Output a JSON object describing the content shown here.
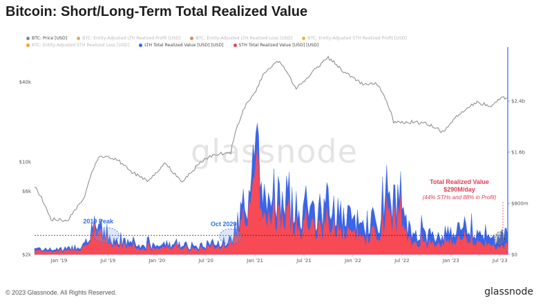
{
  "title": "Bitcoin: Short/Long-Term Total Realized Value",
  "legend": [
    {
      "label": "BTC: Price [USD]",
      "color": "#888888",
      "active": true
    },
    {
      "label": "BTC: Entity-Adjusted LTH Realized Profit [USD]",
      "color": "#f2a65a",
      "active": false
    },
    {
      "label": "BTC: Entity-Adjusted LTH Realized Loss [USD]",
      "color": "#e8844d",
      "active": false
    },
    {
      "label": "BTC: Entity-Adjusted STH Realized Profit [USD]",
      "color": "#f6b23a",
      "active": false
    },
    {
      "label": "BTC: Entity-Adjusted STH Realized Loss [USD]",
      "color": "#f0a030",
      "active": false
    },
    {
      "label": "LTH Total Realized Value [USD] [USD]",
      "color": "#3a64e8",
      "active": true
    },
    {
      "label": "STH Total Realized Value [USD] [USD]",
      "color": "#f0404e",
      "active": true
    }
  ],
  "watermark": "glassnode",
  "footer": {
    "copyright": "© 2023 Glassnode. All Rights Reserved.",
    "logo": "glassnode"
  },
  "colors": {
    "price": "#8a9196",
    "lth": "#3a64e8",
    "sth": "#f74a55",
    "right_axis": "#3a64e8"
  },
  "chart_data": {
    "type": "area",
    "title": "Bitcoin: Short/Long-Term Total Realized Value",
    "x_ticks": [
      "Jan '19",
      "Jul '19",
      "Jan '20",
      "Jul '20",
      "Jan '21",
      "Jul '21",
      "Jan '22",
      "Jul '22",
      "Jan '23",
      "Jul '23"
    ],
    "x": [
      "2018-10",
      "2018-12",
      "2019-02",
      "2019-04",
      "2019-06",
      "2019-08",
      "2019-10",
      "2019-12",
      "2020-02",
      "2020-04",
      "2020-06",
      "2020-08",
      "2020-10",
      "2020-12",
      "2021-01",
      "2021-02",
      "2021-04",
      "2021-06",
      "2021-08",
      "2021-10",
      "2021-12",
      "2022-02",
      "2022-04",
      "2022-06",
      "2022-08",
      "2022-10",
      "2022-12",
      "2023-02",
      "2023-04",
      "2023-06",
      "2023-07"
    ],
    "left_axis": {
      "label": "",
      "scale": "log",
      "ticks": [
        "$2k",
        "$6k",
        "$10k",
        "$40k"
      ]
    },
    "right_axis": {
      "label": "",
      "scale": "linear",
      "ticks": [
        "$0",
        "$800m",
        "$1.6b",
        "$2.4b"
      ],
      "range": [
        0,
        3200000000
      ]
    },
    "series": [
      {
        "name": "BTC: Price [USD]",
        "axis": "left",
        "values": [
          6500,
          3700,
          3600,
          5200,
          11000,
          10500,
          8300,
          7200,
          9800,
          7000,
          9400,
          11500,
          11500,
          28000,
          33000,
          45000,
          58000,
          35000,
          47000,
          61000,
          47000,
          39000,
          39000,
          20000,
          20000,
          19500,
          16800,
          23000,
          28000,
          26500,
          30500
        ]
      },
      {
        "name": "LTH Total Realized Value [USD] [USD]",
        "axis": "right",
        "values": [
          100000000,
          80000000,
          90000000,
          150000000,
          400000000,
          200000000,
          160000000,
          120000000,
          170000000,
          150000000,
          130000000,
          180000000,
          220000000,
          900000000,
          1700000000,
          900000000,
          1000000000,
          700000000,
          600000000,
          800000000,
          550000000,
          500000000,
          450000000,
          900000000,
          350000000,
          300000000,
          320000000,
          350000000,
          300000000,
          230000000,
          290000000
        ]
      },
      {
        "name": "STH Total Realized Value [USD] [USD]",
        "axis": "right",
        "values": [
          70000000,
          50000000,
          60000000,
          110000000,
          330000000,
          140000000,
          110000000,
          80000000,
          120000000,
          110000000,
          90000000,
          130000000,
          160000000,
          700000000,
          1300000000,
          620000000,
          700000000,
          460000000,
          380000000,
          500000000,
          330000000,
          300000000,
          270000000,
          650000000,
          210000000,
          170000000,
          190000000,
          220000000,
          180000000,
          130000000,
          128000000
        ]
      }
    ],
    "reference_line": {
      "value": 300000000,
      "style": "dashed"
    },
    "annotations": [
      {
        "label": "2019 Peak"
      },
      {
        "label": "Oct 2020"
      },
      {
        "label": "Total Realized Value",
        "sub": "$290M/day",
        "note": "(44% STHs and 88% in Profit)"
      }
    ]
  }
}
